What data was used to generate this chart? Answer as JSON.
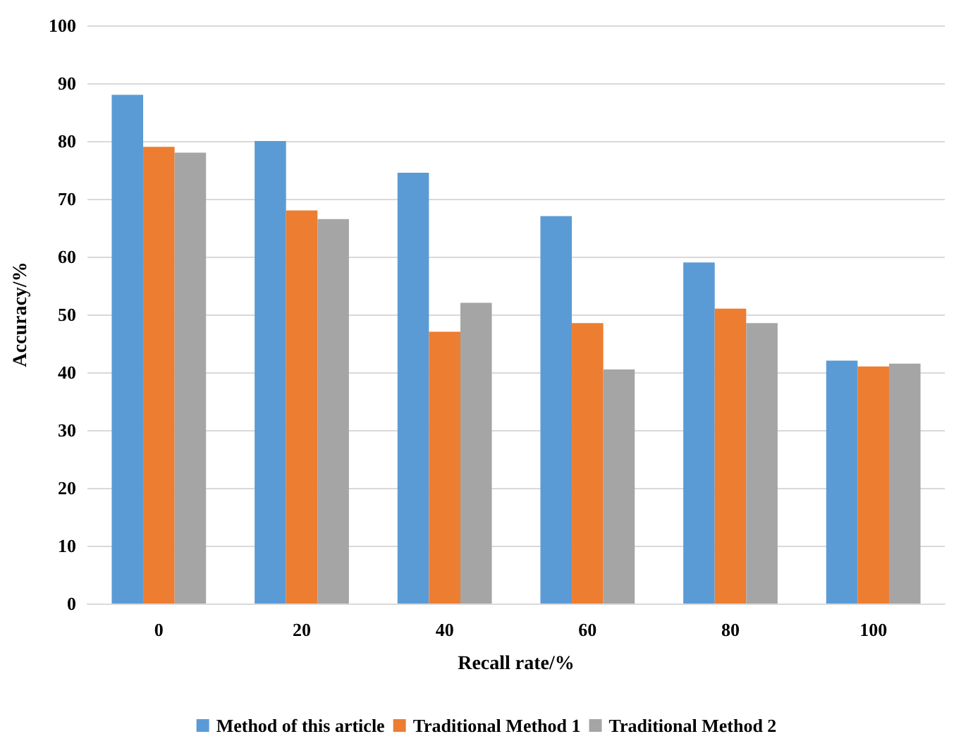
{
  "chart_data": {
    "type": "bar",
    "xlabel": "Recall rate/%",
    "ylabel": "Accuracy/%",
    "categories": [
      "0",
      "20",
      "40",
      "60",
      "80",
      "100"
    ],
    "series": [
      {
        "name": "Method of this article",
        "color": "#5b9bd5",
        "values": [
          88,
          80,
          74.5,
          67,
          59,
          42
        ]
      },
      {
        "name": "Traditional Method 1",
        "color": "#ed7d31",
        "values": [
          79,
          68,
          47,
          48.5,
          51,
          41
        ]
      },
      {
        "name": "Traditional Method 2",
        "color": "#a5a5a5",
        "values": [
          78,
          66.5,
          52,
          40.5,
          48.5,
          41.5
        ]
      }
    ],
    "ylim": [
      0,
      100
    ],
    "yticks": [
      0,
      10,
      20,
      30,
      40,
      50,
      60,
      70,
      80,
      90,
      100
    ],
    "grid": "y",
    "legend": "bottom"
  }
}
